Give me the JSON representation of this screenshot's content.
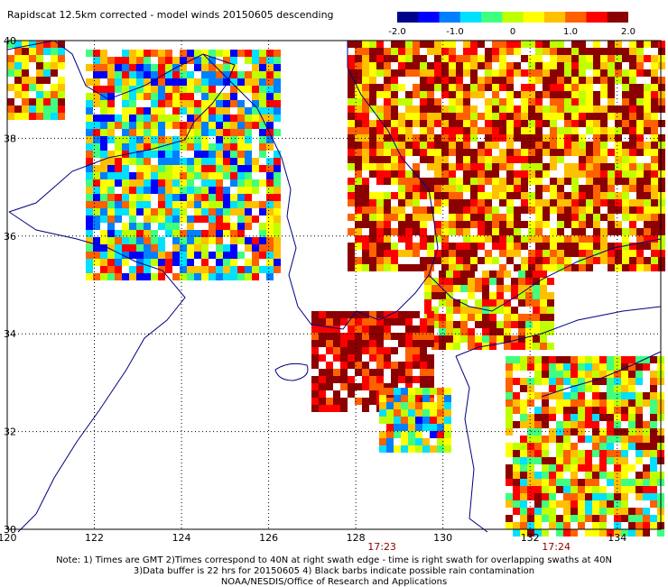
{
  "title": "Rapidscat 12.5km corrected - model winds 20150605 descending",
  "colorbar": {
    "ticks": [
      {
        "label": "-2.0",
        "value": -2.0
      },
      {
        "label": "-1.0",
        "value": -1.0
      },
      {
        "label": "0",
        "value": 0
      },
      {
        "label": "1.0",
        "value": 1.0
      },
      {
        "label": "2.0",
        "value": 2.0
      }
    ],
    "colors": [
      "#00008b",
      "#0000ff",
      "#0080ff",
      "#00e0ff",
      "#40ff80",
      "#c0ff00",
      "#ffff00",
      "#ffc000",
      "#ff6000",
      "#ff0000",
      "#8b0000"
    ]
  },
  "map": {
    "lon_range": [
      120,
      135
    ],
    "lat_range": [
      30,
      40
    ],
    "lon_ticks": [
      "120",
      "122",
      "124",
      "126",
      "128",
      "130",
      "132",
      "134"
    ],
    "lat_ticks": [
      "30",
      "32",
      "34",
      "36",
      "38",
      "40"
    ],
    "grid": true,
    "coastline_color": "#000080"
  },
  "swath_times": [
    {
      "label": "17:23",
      "lon": 128.6
    },
    {
      "label": "17:24",
      "lon": 132.6
    }
  ],
  "notes": {
    "line1": "Note: 1) Times are GMT 2)Times correspond to 40N at right swath edge - time is right swath for overlapping swaths at 40N",
    "line2": "3)Data buffer is 22 hrs for 20150605 4) Black barbs indicate possible rain contamination",
    "line3": "NOAA/NESDIS/Office of Research and Applications"
  }
}
